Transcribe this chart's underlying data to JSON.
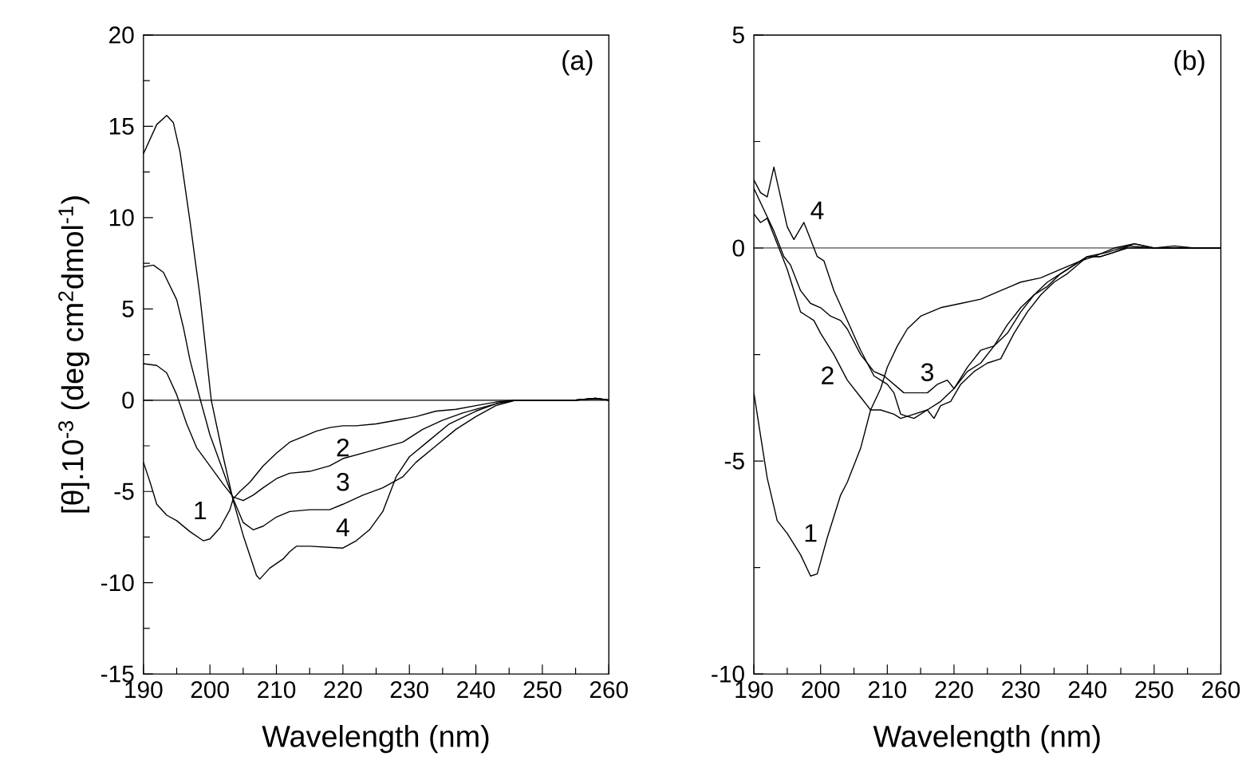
{
  "chart_data": [
    {
      "type": "line",
      "title": "(a)",
      "xlabel": "Wavelength (nm)",
      "ylabel": "[θ].10$^{-3}$ (deg cm$^{2}$dmol$^{-1}$)",
      "xlim": [
        190,
        260
      ],
      "ylim": [
        -15,
        20
      ],
      "xticks": [
        190,
        200,
        210,
        220,
        230,
        240,
        250,
        260
      ],
      "yticks": [
        -15,
        -10,
        -5,
        0,
        5,
        10,
        15,
        20
      ],
      "marker": "none",
      "line_style": "solid",
      "grid": false,
      "legend": false,
      "ref_lines": [
        {
          "axis": "y",
          "value": 0,
          "color": "#000000"
        }
      ],
      "series": [
        {
          "name": "1",
          "color": "#000000",
          "x": [
            190,
            191,
            192,
            193.5,
            195,
            197,
            199,
            200,
            201.5,
            203,
            203.5,
            204.5,
            206,
            208,
            210,
            212,
            214,
            216,
            218,
            220,
            222,
            225,
            228,
            231,
            234,
            237,
            240,
            243,
            246,
            250,
            255,
            258,
            260
          ],
          "values": [
            -3.4,
            -4.5,
            -5.7,
            -6.3,
            -6.6,
            -7.2,
            -7.7,
            -7.6,
            -7.0,
            -6.0,
            -5.4,
            -5.0,
            -4.5,
            -3.6,
            -2.9,
            -2.3,
            -2.0,
            -1.7,
            -1.5,
            -1.4,
            -1.4,
            -1.3,
            -1.1,
            -0.9,
            -0.6,
            -0.5,
            -0.3,
            -0.1,
            0,
            0,
            0,
            0.1,
            0
          ]
        },
        {
          "name": "2",
          "color": "#000000",
          "x": [
            190,
            192,
            193.5,
            195,
            196.5,
            198,
            200,
            202,
            203.5,
            205,
            206.5,
            208,
            210,
            212,
            215,
            218,
            220,
            223,
            226,
            229,
            232,
            235,
            238,
            241,
            244,
            246,
            250,
            255,
            258,
            260
          ],
          "values": [
            2.0,
            1.9,
            1.5,
            0.3,
            -1.3,
            -2.6,
            -3.6,
            -4.6,
            -5.3,
            -5.5,
            -5.2,
            -4.8,
            -4.3,
            -4.0,
            -3.9,
            -3.6,
            -3.2,
            -2.9,
            -2.6,
            -2.3,
            -1.6,
            -1.1,
            -0.7,
            -0.4,
            -0.1,
            0,
            0,
            0,
            0.1,
            0
          ]
        },
        {
          "name": "3",
          "color": "#000000",
          "x": [
            190,
            191.5,
            193,
            195,
            196,
            197,
            198.5,
            200,
            202,
            203.5,
            205,
            206.5,
            208,
            210,
            212,
            215,
            218,
            220,
            223,
            226,
            229,
            231,
            234,
            237,
            240,
            243,
            246,
            250,
            255,
            258,
            260
          ],
          "values": [
            7.3,
            7.4,
            7.0,
            5.5,
            4.0,
            2.2,
            0.1,
            -1.9,
            -3.9,
            -5.4,
            -6.7,
            -7.1,
            -6.9,
            -6.4,
            -6.1,
            -6.0,
            -6.0,
            -5.7,
            -5.2,
            -4.8,
            -4.2,
            -3.4,
            -2.5,
            -1.6,
            -0.9,
            -0.3,
            0,
            0,
            0,
            0.1,
            0
          ]
        },
        {
          "name": "4",
          "color": "#000000",
          "x": [
            190,
            192,
            193.5,
            194.5,
            195.5,
            197,
            198.5,
            200.2,
            202,
            203.5,
            205,
            207,
            207.5,
            209,
            211,
            212,
            213,
            215,
            220,
            222,
            224,
            226,
            228,
            230,
            233,
            236,
            240,
            243,
            246,
            250,
            255,
            258,
            260
          ],
          "values": [
            13.5,
            15.1,
            15.6,
            15.2,
            13.6,
            9.8,
            5.7,
            0,
            -3.1,
            -5.5,
            -7.4,
            -9.6,
            -9.8,
            -9.2,
            -8.7,
            -8.3,
            -8.0,
            -8.0,
            -8.1,
            -7.7,
            -7.1,
            -6.1,
            -4.2,
            -3.1,
            -2.2,
            -1.3,
            -0.6,
            -0.2,
            0,
            0,
            0,
            0.1,
            0
          ]
        }
      ]
    },
    {
      "type": "line",
      "title": "(b)",
      "xlabel": "Wavelength (nm)",
      "xlim": [
        190,
        260
      ],
      "ylim": [
        -10,
        5
      ],
      "xticks": [
        190,
        200,
        210,
        220,
        230,
        240,
        250,
        260
      ],
      "yticks": [
        -10,
        -5,
        0,
        5
      ],
      "marker": "none",
      "line_style": "solid",
      "grid": false,
      "legend": false,
      "ref_lines": [
        {
          "axis": "y",
          "value": 0,
          "color": "#000000"
        }
      ],
      "series": [
        {
          "name": "1",
          "color": "#000000",
          "x": [
            190,
            191,
            192,
            193.5,
            195,
            197,
            198.5,
            199.5,
            201,
            203,
            204,
            206,
            207.5,
            209,
            210,
            211.5,
            213,
            215,
            218,
            221,
            224,
            227,
            230,
            233,
            236,
            239,
            241,
            244,
            247,
            250,
            253,
            256,
            260
          ],
          "values": [
            -3.4,
            -4.4,
            -5.4,
            -6.4,
            -6.7,
            -7.2,
            -7.7,
            -7.65,
            -6.8,
            -5.8,
            -5.5,
            -4.7,
            -3.8,
            -3.3,
            -2.8,
            -2.3,
            -1.9,
            -1.6,
            -1.4,
            -1.3,
            -1.2,
            -1.0,
            -0.8,
            -0.7,
            -0.5,
            -0.3,
            -0.2,
            0,
            0.1,
            0,
            0.05,
            0,
            0
          ]
        },
        {
          "name": "2",
          "color": "#000000",
          "x": [
            190,
            191,
            192,
            193,
            194,
            195,
            196,
            197,
            198,
            199,
            200,
            202,
            204,
            206,
            207.5,
            209,
            211,
            212,
            214,
            216,
            218,
            220,
            222,
            224,
            226,
            228,
            230,
            232,
            234,
            236,
            238,
            240,
            242,
            244,
            246,
            250,
            255,
            260
          ],
          "values": [
            0.8,
            0.6,
            0.7,
            0.3,
            -0.1,
            -0.5,
            -1.0,
            -1.5,
            -1.6,
            -1.7,
            -2.0,
            -2.5,
            -3.1,
            -3.5,
            -3.8,
            -3.8,
            -3.9,
            -4.0,
            -3.9,
            -3.8,
            -3.6,
            -3.3,
            -2.9,
            -2.7,
            -2.3,
            -1.8,
            -1.4,
            -1.1,
            -0.9,
            -0.6,
            -0.4,
            -0.2,
            -0.2,
            -0.1,
            0,
            0,
            0,
            0
          ]
        },
        {
          "name": "3",
          "color": "#000000",
          "x": [
            190,
            191.5,
            193,
            194.5,
            195.5,
            197,
            198.5,
            200,
            201.5,
            203,
            204,
            206,
            208,
            209.5,
            211,
            212.5,
            214,
            216,
            217.5,
            219,
            220,
            222,
            224,
            226,
            228,
            230,
            232,
            234,
            236,
            238,
            240,
            243,
            246,
            250,
            255,
            260
          ],
          "values": [
            1.4,
            0.9,
            0.4,
            -0.2,
            -0.4,
            -1.0,
            -1.3,
            -1.4,
            -1.6,
            -1.7,
            -1.9,
            -2.5,
            -2.9,
            -3.0,
            -3.2,
            -3.4,
            -3.4,
            -3.4,
            -3.2,
            -3.1,
            -3.3,
            -2.8,
            -2.4,
            -2.3,
            -2.0,
            -1.5,
            -1.1,
            -0.8,
            -0.6,
            -0.4,
            -0.2,
            -0.1,
            0.05,
            0,
            0,
            0
          ]
        },
        {
          "name": "4",
          "color": "#000000",
          "x": [
            190,
            191,
            192,
            193,
            194,
            195,
            196,
            197.5,
            198.5,
            199.5,
            200.5,
            202,
            204,
            206,
            208,
            209,
            210,
            211,
            212,
            214,
            216,
            217,
            218,
            219.5,
            221,
            223,
            225,
            227,
            229,
            231,
            233,
            235,
            237,
            240,
            242,
            244,
            247,
            250,
            255,
            260
          ],
          "values": [
            1.6,
            1.3,
            1.2,
            1.9,
            1.2,
            0.5,
            0.2,
            0.6,
            0.2,
            -0.2,
            -0.3,
            -1.0,
            -1.7,
            -2.4,
            -3.0,
            -3.1,
            -3.2,
            -3.4,
            -3.9,
            -4.0,
            -3.8,
            -4.0,
            -3.7,
            -3.6,
            -3.2,
            -2.9,
            -2.7,
            -2.6,
            -2.0,
            -1.5,
            -1.1,
            -0.8,
            -0.6,
            -0.2,
            -0.2,
            -0.1,
            0.1,
            0,
            0,
            0
          ]
        }
      ]
    }
  ]
}
